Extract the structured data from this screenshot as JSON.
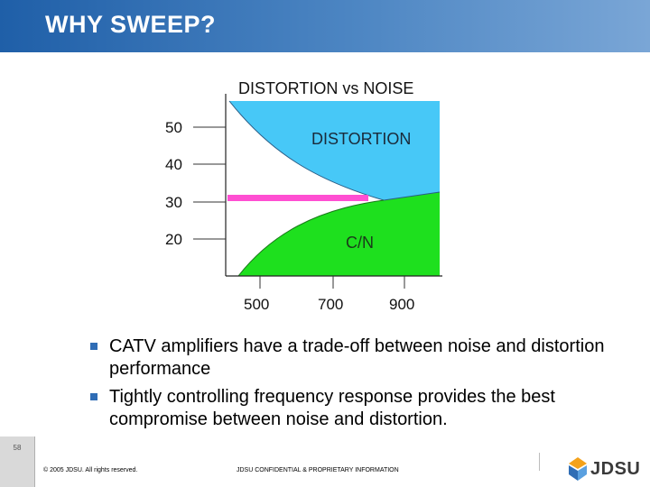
{
  "slide": {
    "title": "WHY SWEEP?",
    "bullets": [
      "CATV amplifiers have a trade-off between noise and distortion performance",
      "Tightly controlling frequency response provides the best compromise between noise and distortion."
    ]
  },
  "chart_data": {
    "type": "area",
    "title": "DISTORTION vs NOISE",
    "xlabel": "",
    "ylabel": "",
    "x_ticks": [
      500,
      700,
      900
    ],
    "y_ticks": [
      50,
      40,
      30,
      20
    ],
    "regions": [
      {
        "name": "DISTORTION",
        "color": "#47c8f7"
      },
      {
        "name": "C/N",
        "color": "#1ee01e"
      }
    ],
    "marker_line": {
      "value": 30,
      "color": "#ff4fd2"
    }
  },
  "footer": {
    "page_number": "58",
    "copyright": "© 2005 JDSU. All rights reserved.",
    "confidential": "JDSU CONFIDENTIAL & PROPRIETARY INFORMATION",
    "logo_text": "JDSU"
  }
}
